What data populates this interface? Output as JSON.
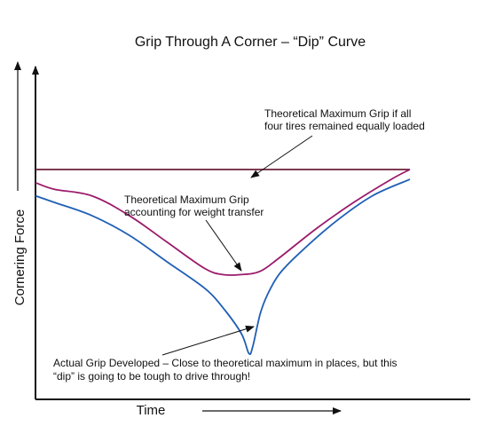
{
  "chart_data": {
    "type": "line",
    "title": "Grip Through A Corner – “Dip” Curve",
    "xlabel": "Time",
    "ylabel": "Cornering Force",
    "xlim": [
      0,
      100
    ],
    "ylim": [
      0,
      100
    ],
    "grid": false,
    "series": [
      {
        "color": "#6b1f3a",
        "x": [
          0,
          100
        ],
        "y": [
          70,
          70
        ]
      },
      {
        "color": "#9b1b6a",
        "x": [
          0,
          5,
          15,
          25,
          35,
          45,
          50,
          55,
          60,
          65,
          75,
          85,
          95,
          100
        ],
        "y": [
          66,
          64,
          62,
          56,
          48,
          40,
          38,
          38,
          39,
          43,
          52,
          60,
          67,
          70
        ]
      },
      {
        "color": "#1f5fb5",
        "x": [
          0,
          5,
          15,
          25,
          35,
          45,
          50,
          55,
          57,
          58,
          60,
          62,
          65,
          70,
          80,
          90,
          100
        ],
        "y": [
          62,
          60,
          56,
          50,
          42,
          34,
          28,
          20,
          14,
          16,
          26,
          32,
          38,
          44,
          54,
          62,
          67
        ]
      }
    ],
    "annotations": [
      {
        "lines": [
          "Theoretical Maximum Grip if all",
          "four tires remained equally loaded"
        ],
        "target": {
          "x": 55,
          "y": 70
        }
      },
      {
        "lines": [
          "Theoretical Maximum Grip",
          "accounting for weight transfer"
        ],
        "target": {
          "x": 54,
          "y": 38
        }
      },
      {
        "lines": [
          "Actual Grip Developed – Close to theoretical maximum in places, but this",
          "“dip” is going to be tough to drive through!"
        ],
        "target": {
          "x": 55,
          "y": 20
        }
      }
    ],
    "arrows": [
      "y-axis-up",
      "time-right"
    ]
  }
}
